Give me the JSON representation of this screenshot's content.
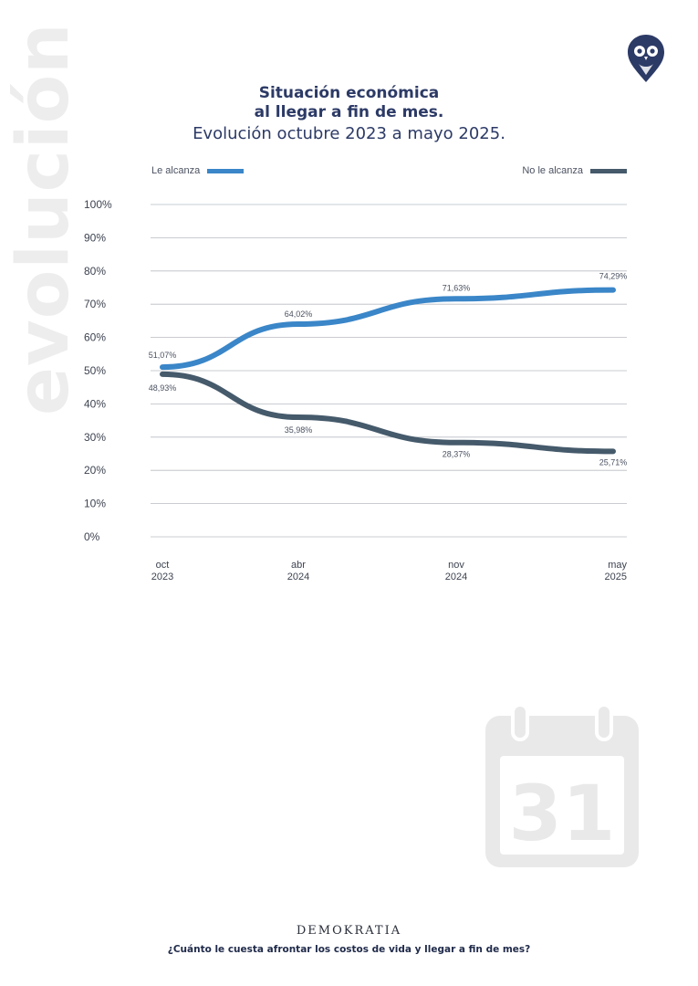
{
  "side_word": "evolución",
  "title": {
    "line1": "Situación económica",
    "line2": "al llegar a fin de mes.",
    "subtitle": "Evolución octubre 2023 a mayo 2025."
  },
  "colors": {
    "le_alcanza": "#3a86c8",
    "no_le_alcanza": "#455a6b",
    "title": "#2c3a66",
    "watermark": "#ededed"
  },
  "chart_data": {
    "type": "line",
    "title": "Situación económica al llegar a fin de mes.",
    "subtitle": "Evolución octubre 2023 a mayo 2025.",
    "categories": [
      {
        "month": "oct",
        "year": "2023"
      },
      {
        "month": "abr",
        "year": "2024"
      },
      {
        "month": "nov",
        "year": "2024"
      },
      {
        "month": "may",
        "year": "2025"
      }
    ],
    "x": [
      "2023-10",
      "2024-04",
      "2024-11",
      "2025-05"
    ],
    "series": [
      {
        "name": "Le alcanza",
        "values": [
          51.07,
          64.02,
          71.63,
          74.29
        ],
        "labels": [
          "51,07%",
          "64,02%",
          "71,63%",
          "74,29%"
        ]
      },
      {
        "name": "No le alcanza",
        "values": [
          48.93,
          35.98,
          28.37,
          25.71
        ],
        "labels": [
          "48,93%",
          "35,98%",
          "28,37%",
          "25,71%"
        ]
      }
    ],
    "ylim": [
      0,
      100
    ],
    "yticks": [
      "0%",
      "10%",
      "20%",
      "30%",
      "40%",
      "50%",
      "60%",
      "70%",
      "80%",
      "90%",
      "100%"
    ],
    "grid": true,
    "legend_placement": "top"
  },
  "calendar_icon": {
    "name": "calendar-icon",
    "day": "31"
  },
  "footer": {
    "brand": "DEMOKRATIA",
    "question": "¿Cuánto le cuesta afrontar los costos de vida y llegar a fin de mes?"
  }
}
